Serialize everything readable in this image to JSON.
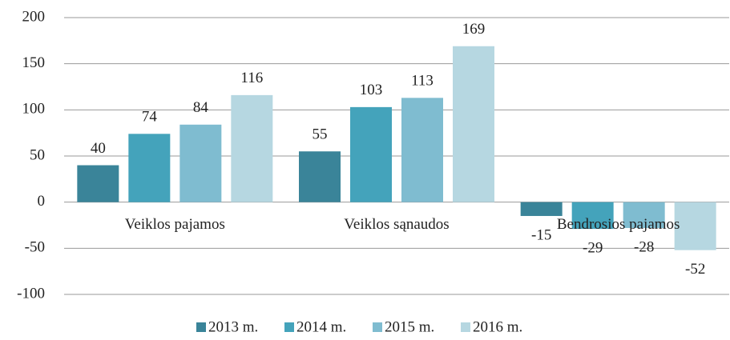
{
  "chart_data": {
    "type": "bar",
    "categories": [
      "Veiklos pajamos",
      "Veiklos sąnaudos",
      "Bendrosios pajamos"
    ],
    "series": [
      {
        "name": "2013 m.",
        "color": "#3a8499",
        "values": [
          40,
          55,
          -15
        ]
      },
      {
        "name": "2014 m.",
        "color": "#44a3bb",
        "values": [
          74,
          103,
          -29
        ]
      },
      {
        "name": "2015 m.",
        "color": "#7fbcd0",
        "values": [
          84,
          113,
          -28
        ]
      },
      {
        "name": "2016 m.",
        "color": "#b6d7e1",
        "values": [
          116,
          169,
          -52
        ]
      }
    ],
    "ylim": [
      -100,
      200
    ],
    "yticks": [
      -100,
      -50,
      0,
      50,
      100,
      150,
      200
    ],
    "grid": true,
    "legend": "bottom"
  }
}
